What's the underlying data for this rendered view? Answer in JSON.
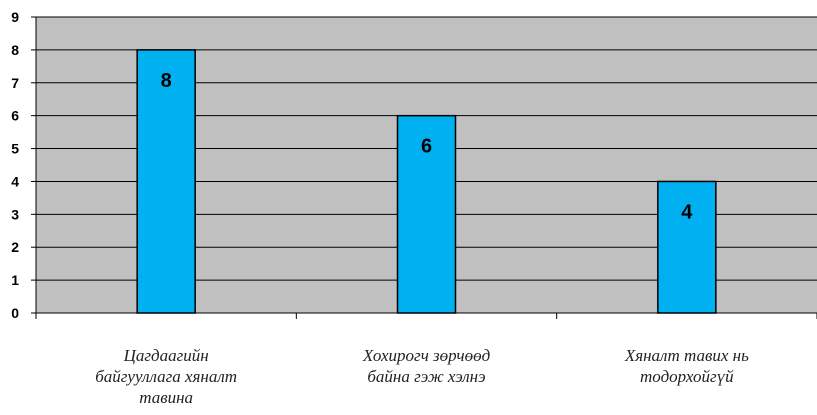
{
  "chart_data": {
    "type": "bar",
    "categories": [
      "Цагдаагийн\nбайгууллага хяналт\nтавина",
      "Хохирогч зөрчөөд\nбайна гэж хэлнэ",
      "Хяналт тавих нь\nтодорхойгүй"
    ],
    "values": [
      8,
      6,
      4
    ],
    "ylim": [
      0,
      9
    ],
    "yticks": [
      "0",
      "1",
      "2",
      "3",
      "4",
      "5",
      "6",
      "7",
      "8",
      "9"
    ],
    "data_labels": [
      "8",
      "6",
      "4"
    ],
    "grid": true,
    "legend": "none"
  },
  "colors": {
    "plot_bg": "#c0c0c0",
    "bar_fill": "#00b0f0",
    "bar_stroke": "#000000",
    "grid": "#000000"
  }
}
